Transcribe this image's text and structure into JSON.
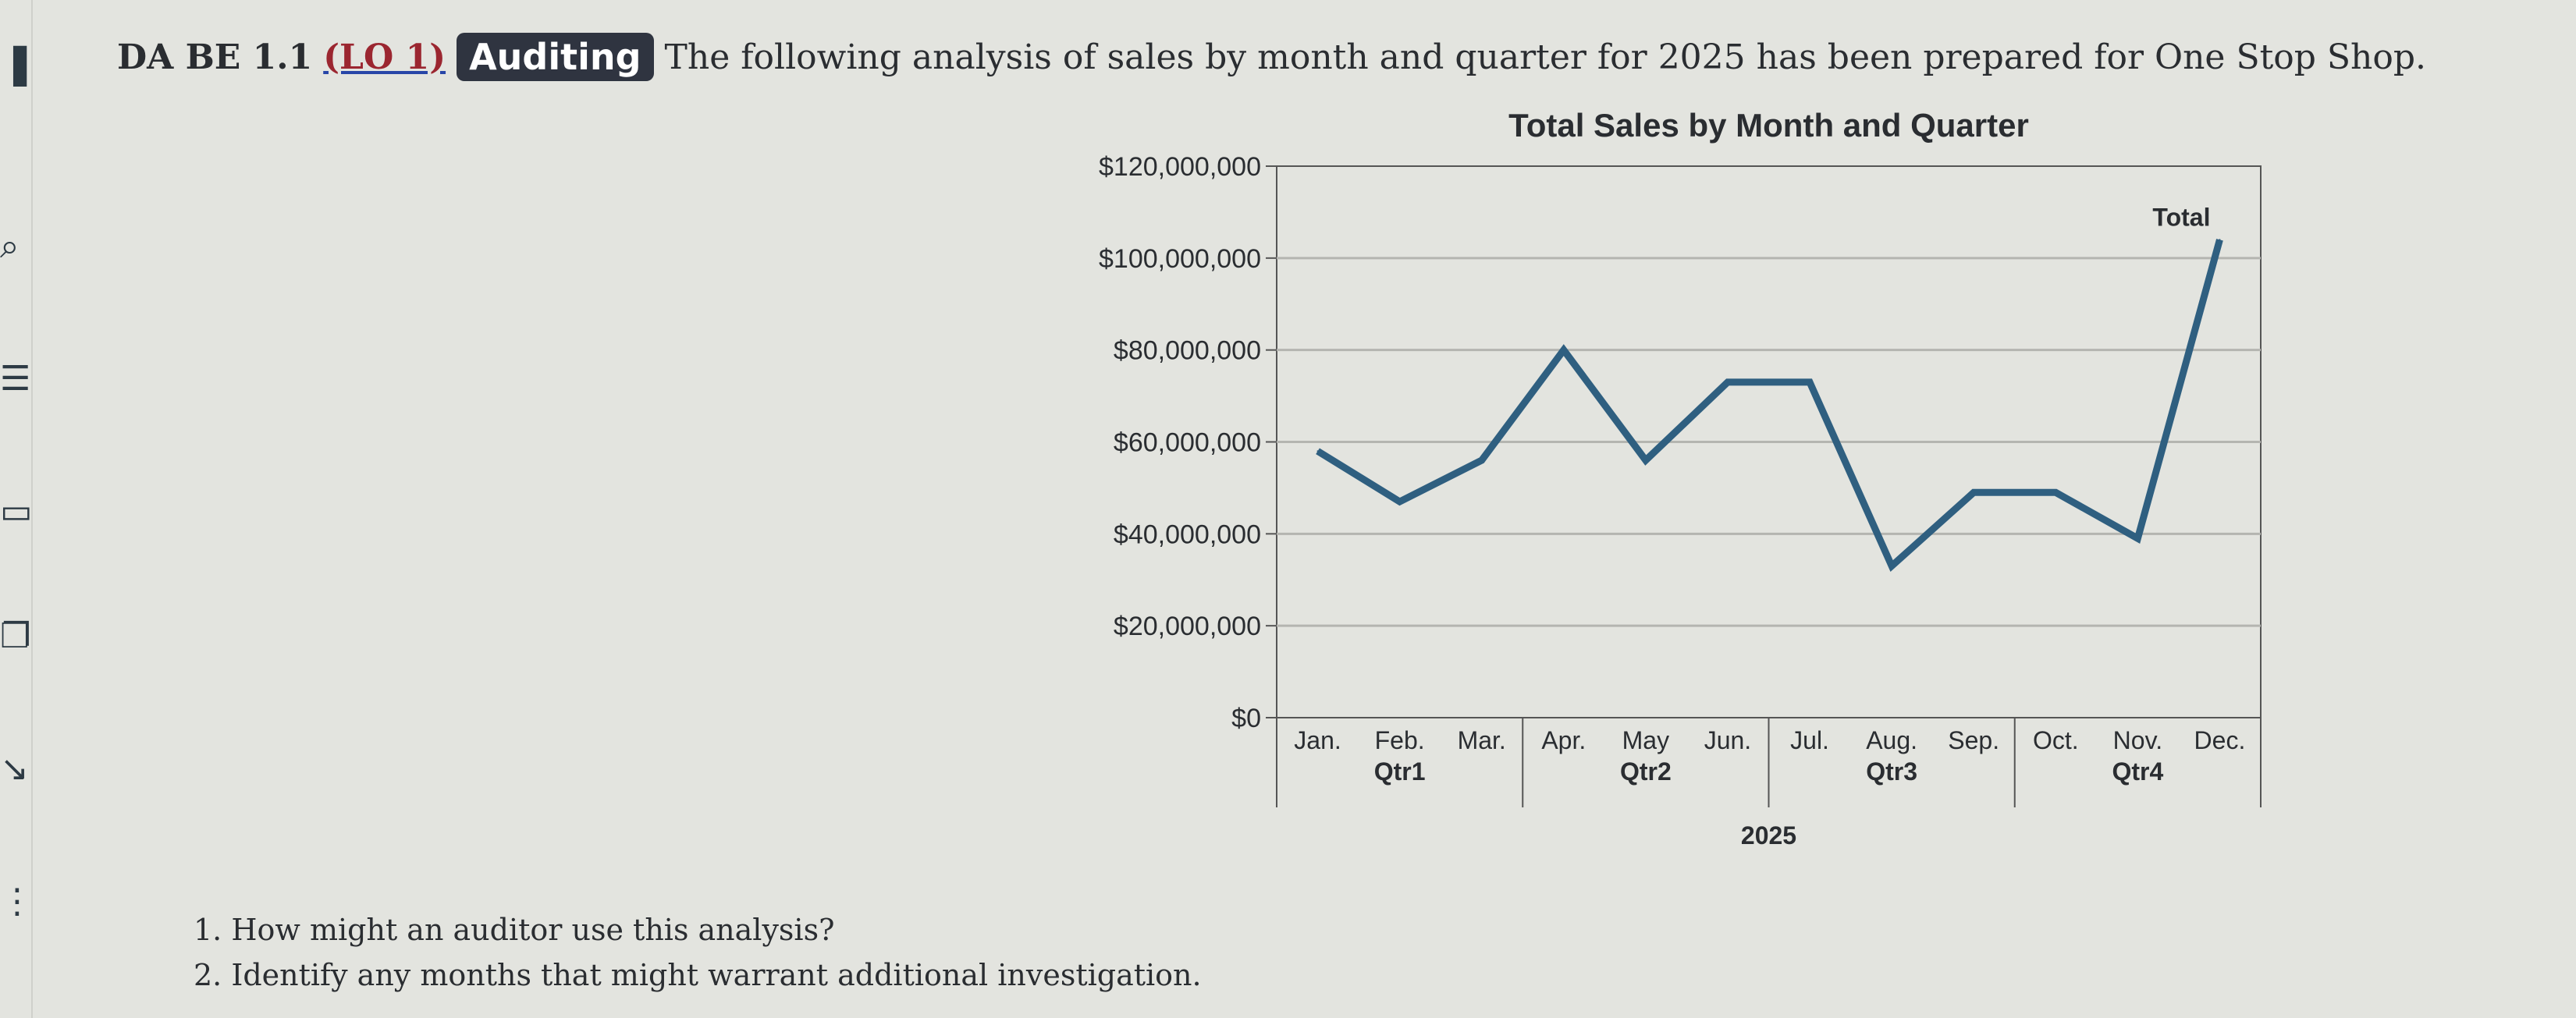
{
  "header": {
    "code": "DA BE 1.1",
    "lo": "(LO 1)",
    "badge": "Auditing",
    "text": "The following analysis of sales by month and quarter for 2025 has been prepared for One Stop Shop."
  },
  "questions": [
    "1. How might an auditor use this analysis?",
    "2. Identify any months that might warrant additional investigation."
  ],
  "chart_data": {
    "type": "line",
    "title": "Total Sales by Month and Quarter",
    "xlabel": "2025",
    "ylabel": "",
    "categories": [
      "Jan.",
      "Feb.",
      "Mar.",
      "Apr.",
      "May",
      "Jun.",
      "Jul.",
      "Aug.",
      "Sep.",
      "Oct.",
      "Nov.",
      "Dec."
    ],
    "quarters": [
      "Qtr1",
      "Qtr2",
      "Qtr3",
      "Qtr4"
    ],
    "series": [
      {
        "name": "Total",
        "values": [
          58000000,
          47000000,
          56000000,
          80000000,
          56000000,
          73000000,
          73000000,
          33000000,
          49000000,
          49000000,
          39000000,
          104000000
        ]
      }
    ],
    "ylim": [
      0,
      120000000
    ],
    "yticks": [
      0,
      20000000,
      40000000,
      60000000,
      80000000,
      100000000,
      120000000
    ],
    "ytick_labels": [
      "$0",
      "$20,000,000",
      "$40,000,000",
      "$60,000,000",
      "$80,000,000",
      "$100,000,000",
      "$120,000,000"
    ],
    "grid": true,
    "line_color": "#2f5f80"
  }
}
